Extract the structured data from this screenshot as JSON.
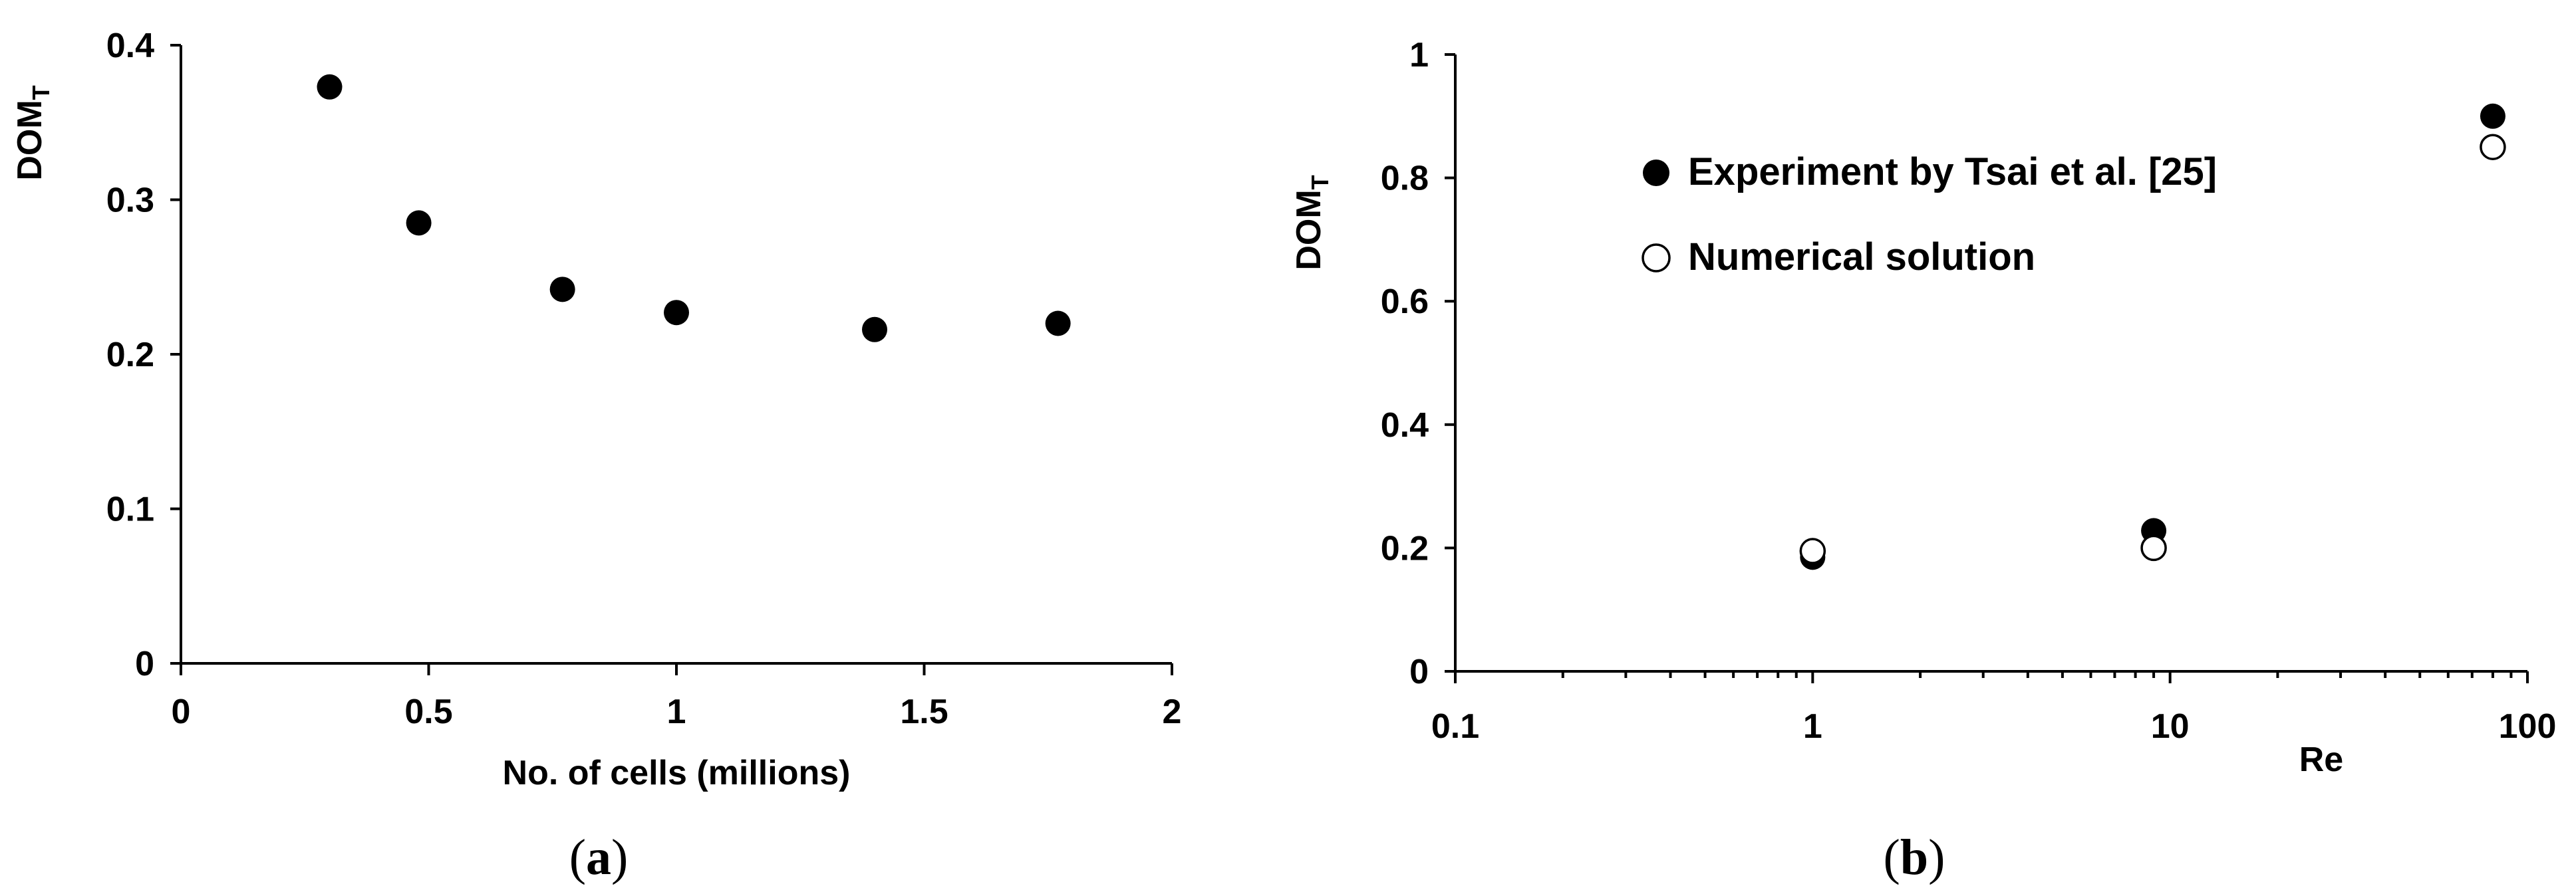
{
  "chart_data": [
    {
      "type": "scatter",
      "panel": "(a)",
      "panel_letter": "a",
      "xlabel": "No. of cells (millions)",
      "ylabel": "DOM",
      "ylabel_sub": "T",
      "xlim": [
        0,
        2
      ],
      "ylim": [
        0,
        0.4
      ],
      "x_scale": "linear",
      "x_ticks": [
        0,
        0.5,
        1,
        1.5,
        2
      ],
      "x_tick_labels": [
        "0",
        "0.5",
        "1",
        "1.5",
        "2"
      ],
      "y_ticks": [
        0,
        0.1,
        0.2,
        0.3,
        0.4
      ],
      "y_tick_labels": [
        "0",
        "0.1",
        "0.2",
        "0.3",
        "0.4"
      ],
      "grid": false,
      "series": [
        {
          "marker": "filled-circle",
          "color": "#000000",
          "x": [
            0.3,
            0.48,
            0.77,
            1.0,
            1.4,
            1.77
          ],
          "y": [
            0.373,
            0.285,
            0.242,
            0.227,
            0.216,
            0.22
          ]
        }
      ]
    },
    {
      "type": "scatter",
      "panel": "(b)",
      "panel_letter": "b",
      "xlabel": "Re",
      "ylabel": "DOM",
      "ylabel_sub": "T",
      "xlim": [
        0.1,
        100
      ],
      "ylim": [
        0,
        1
      ],
      "x_scale": "log",
      "x_ticks": [
        0.1,
        1,
        10,
        100
      ],
      "x_tick_labels": [
        "0.1",
        "1",
        "10",
        "100"
      ],
      "y_ticks": [
        0,
        0.2,
        0.4,
        0.6,
        0.8,
        1
      ],
      "y_tick_labels": [
        "0",
        "0.2",
        "0.4",
        "0.6",
        "0.8",
        "1"
      ],
      "grid": false,
      "legend_position": "top-left",
      "series": [
        {
          "name": "Experiment by Tsai et al. [25]",
          "marker": "filled-circle",
          "color": "#000000",
          "x": [
            1,
            9,
            80
          ],
          "y": [
            0.185,
            0.228,
            0.9
          ]
        },
        {
          "name": "Numerical solution",
          "marker": "open-circle",
          "color": "#000000",
          "x": [
            1,
            9,
            80
          ],
          "y": [
            0.195,
            0.2,
            0.85
          ]
        }
      ]
    }
  ]
}
